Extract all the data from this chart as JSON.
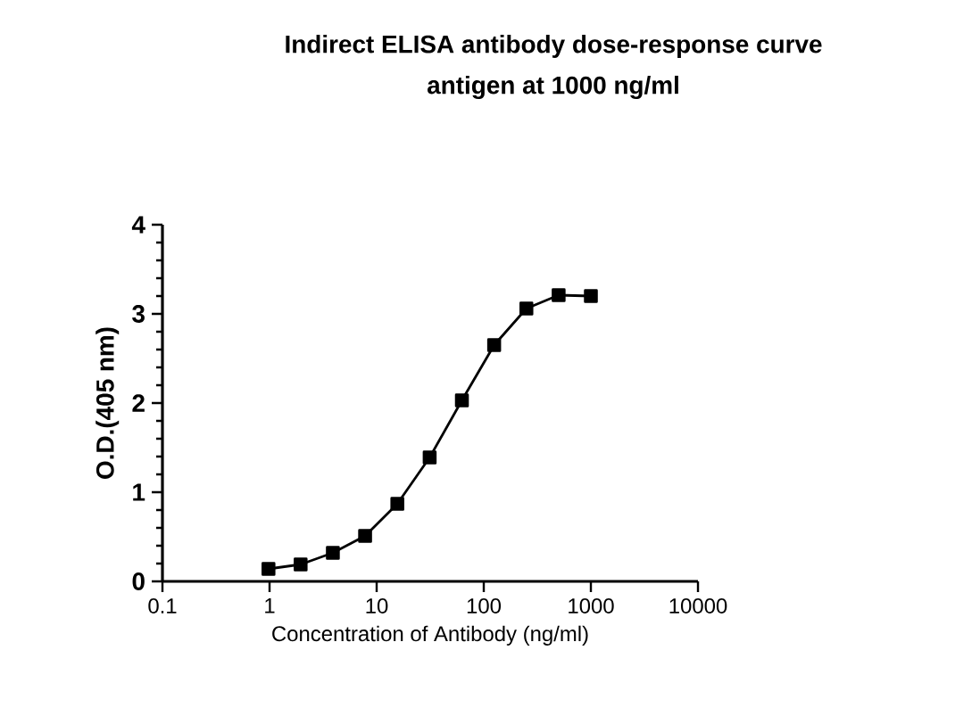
{
  "chart_data": {
    "type": "line",
    "title": "Indirect ELISA antibody dose-response curve",
    "subtitle": "antigen at 1000 ng/ml",
    "xlabel": "Concentration of Antibody (ng/ml)",
    "ylabel": "O.D.(405 nm)",
    "x": [
      0.977,
      1.95,
      3.9,
      7.8,
      15.6,
      31.25,
      62.5,
      125,
      250,
      500,
      1000
    ],
    "series": [
      {
        "color": "#000000",
        "values": [
          0.14,
          0.19,
          0.32,
          0.51,
          0.87,
          1.39,
          2.03,
          2.65,
          3.06,
          3.21,
          3.2
        ]
      }
    ],
    "xlim": [
      0.1,
      10000
    ],
    "ylim": [
      0,
      4
    ],
    "xticks": [
      0.1,
      1,
      10,
      100,
      1000,
      10000
    ],
    "yticks": [
      0,
      1,
      2,
      3,
      4
    ],
    "log": "x",
    "marker": "square",
    "line_style": "solid"
  }
}
